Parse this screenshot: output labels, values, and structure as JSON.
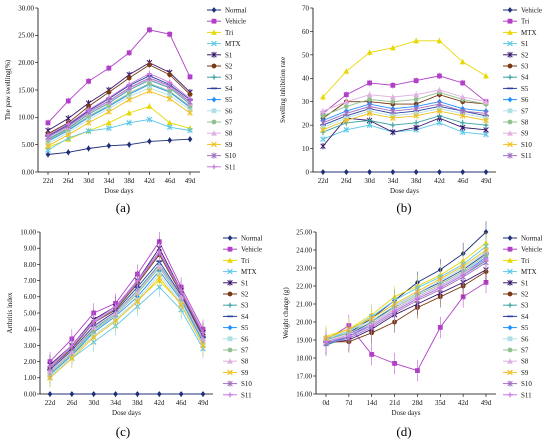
{
  "chart_data": [
    {
      "panel": "(a)",
      "type": "line",
      "ylabel": "The paw swelling(%)",
      "xlabel": "Dose days",
      "x": [
        "22d",
        "26d",
        "30d",
        "34d",
        "38d",
        "42d",
        "46d",
        "49d"
      ],
      "ylim": [
        0,
        30
      ],
      "yticks": [
        "0.00",
        "5.00",
        "10.00",
        "15.00",
        "20.00",
        "25.00",
        "30.00"
      ],
      "series": [
        {
          "name": "Normal",
          "color": "#1f2f7a",
          "values": [
            3.2,
            3.6,
            4.3,
            4.8,
            5.0,
            5.6,
            5.8,
            6.0
          ]
        },
        {
          "name": "Vehicle",
          "color": "#b23fc7",
          "values": [
            9.0,
            13.0,
            16.6,
            19.0,
            21.8,
            26.0,
            25.2,
            17.4
          ]
        },
        {
          "name": "Tri",
          "color": "#e8d800",
          "values": [
            4.5,
            6.0,
            7.5,
            9.0,
            10.8,
            12.0,
            9.0,
            8.0
          ]
        },
        {
          "name": "MTX",
          "color": "#5bc8e8",
          "values": [
            4.0,
            6.2,
            7.5,
            8.0,
            9.0,
            9.6,
            8.2,
            7.6
          ]
        },
        {
          "name": "S1",
          "color": "#3a1a6e",
          "values": [
            7.6,
            9.8,
            12.6,
            15.0,
            17.8,
            20.0,
            18.2,
            14.6
          ]
        },
        {
          "name": "S2",
          "color": "#7a3a12",
          "values": [
            7.0,
            9.0,
            12.0,
            14.6,
            17.2,
            19.6,
            17.8,
            14.2
          ]
        },
        {
          "name": "S3",
          "color": "#3aa0a0",
          "values": [
            6.0,
            8.0,
            10.6,
            12.6,
            15.0,
            16.8,
            15.4,
            12.4
          ]
        },
        {
          "name": "S4",
          "color": "#2a3f9e",
          "values": [
            6.6,
            8.6,
            11.2,
            13.4,
            15.8,
            17.6,
            16.0,
            13.2
          ]
        },
        {
          "name": "S5",
          "color": "#1e90ff",
          "values": [
            5.6,
            7.6,
            10.0,
            12.0,
            14.2,
            16.0,
            14.6,
            11.8
          ]
        },
        {
          "name": "S6",
          "color": "#b0e0e6",
          "values": [
            5.2,
            7.2,
            9.6,
            11.6,
            13.8,
            15.4,
            14.0,
            11.4
          ]
        },
        {
          "name": "S7",
          "color": "#90c090",
          "values": [
            5.8,
            7.8,
            10.2,
            12.2,
            14.4,
            16.2,
            14.8,
            12.0
          ]
        },
        {
          "name": "S8",
          "color": "#e0b0e0",
          "values": [
            6.2,
            8.2,
            10.8,
            12.8,
            15.2,
            17.0,
            15.6,
            12.6
          ]
        },
        {
          "name": "S9",
          "color": "#f0c020",
          "values": [
            4.8,
            6.8,
            9.0,
            11.0,
            13.2,
            14.8,
            13.4,
            10.8
          ]
        },
        {
          "name": "S10",
          "color": "#a070c0",
          "values": [
            6.4,
            8.4,
            11.0,
            13.0,
            15.4,
            17.2,
            15.8,
            12.8
          ]
        },
        {
          "name": "S11",
          "color": "#c878e0",
          "values": [
            6.8,
            8.8,
            11.4,
            13.6,
            16.0,
            18.0,
            16.4,
            13.4
          ]
        }
      ]
    },
    {
      "panel": "(b)",
      "type": "line",
      "ylabel": "Swelling inhibition rate",
      "xlabel": "Dose days",
      "x": [
        "22d",
        "26d",
        "30d",
        "34d",
        "38d",
        "42d",
        "46d",
        "49d"
      ],
      "ylim": [
        0,
        70
      ],
      "yticks": [
        "0",
        "10",
        "20",
        "30",
        "40",
        "50",
        "60",
        "70"
      ],
      "series": [
        {
          "name": "Vehicle",
          "color": "#1f2f7a",
          "values": [
            0,
            0,
            0,
            0,
            0,
            0,
            0,
            0
          ]
        },
        {
          "name": "Tri",
          "color": "#b23fc7",
          "values": [
            25,
            33,
            38,
            37,
            39,
            41,
            38,
            30
          ]
        },
        {
          "name": "MTX",
          "color": "#e8d800",
          "values": [
            32,
            43,
            51,
            53,
            56,
            56,
            47,
            41
          ]
        },
        {
          "name": "S1",
          "color": "#5bc8e8",
          "values": [
            14,
            18,
            20,
            17,
            18,
            21,
            17,
            16
          ]
        },
        {
          "name": "S2",
          "color": "#3a1a6e",
          "values": [
            11,
            23,
            22,
            17,
            19,
            23,
            19,
            18
          ]
        },
        {
          "name": "S3",
          "color": "#7a3a12",
          "values": [
            23,
            30,
            30,
            29,
            29,
            33,
            30,
            29
          ]
        },
        {
          "name": "S4",
          "color": "#3aa0a0",
          "values": [
            17,
            21,
            22,
            20,
            21,
            24,
            21,
            20
          ]
        },
        {
          "name": "S5",
          "color": "#2a3f9e",
          "values": [
            20,
            24,
            27,
            25,
            26,
            28,
            26,
            24
          ]
        },
        {
          "name": "S6",
          "color": "#1e90ff",
          "values": [
            22,
            26,
            29,
            27,
            28,
            30,
            27,
            26
          ]
        },
        {
          "name": "S7",
          "color": "#b0e0e6",
          "values": [
            19,
            23,
            26,
            24,
            25,
            27,
            25,
            23
          ]
        },
        {
          "name": "S8",
          "color": "#90c090",
          "values": [
            24,
            28,
            31,
            30,
            31,
            34,
            31,
            29
          ]
        },
        {
          "name": "S9",
          "color": "#e0b0e0",
          "values": [
            26,
            30,
            33,
            32,
            33,
            35,
            32,
            30
          ]
        },
        {
          "name": "S10",
          "color": "#f0c020",
          "values": [
            18,
            22,
            25,
            23,
            24,
            26,
            24,
            22
          ]
        },
        {
          "name": "S11",
          "color": "#a070c0",
          "values": [
            21,
            25,
            28,
            26,
            27,
            29,
            26,
            25
          ]
        }
      ]
    },
    {
      "panel": "(c)",
      "type": "line",
      "ylabel": "Arthritis index",
      "xlabel": "Dose days",
      "x": [
        "22d",
        "26d",
        "30d",
        "34d",
        "38d",
        "42d",
        "46d",
        "49d"
      ],
      "ylim": [
        0,
        10
      ],
      "yticks": [
        "0.00",
        "1.00",
        "2.00",
        "3.00",
        "4.00",
        "5.00",
        "6.00",
        "7.00",
        "8.00",
        "9.00",
        "10.00"
      ],
      "series": [
        {
          "name": "Normal",
          "color": "#1f2f7a",
          "values": [
            0,
            0,
            0,
            0,
            0,
            0,
            0,
            0
          ]
        },
        {
          "name": "Vehicle",
          "color": "#b23fc7",
          "values": [
            2.0,
            3.4,
            5.0,
            5.6,
            7.4,
            9.4,
            6.6,
            4.0
          ]
        },
        {
          "name": "Tri",
          "color": "#e8d800",
          "values": [
            1.2,
            2.4,
            3.6,
            4.6,
            5.8,
            7.0,
            5.6,
            3.0
          ]
        },
        {
          "name": "MTX",
          "color": "#5bc8e8",
          "values": [
            1.0,
            2.2,
            3.2,
            4.2,
            5.4,
            6.6,
            5.2,
            2.8
          ]
        },
        {
          "name": "S1",
          "color": "#3a1a6e",
          "values": [
            1.8,
            3.0,
            4.6,
            5.4,
            7.0,
            9.0,
            6.4,
            3.8
          ]
        },
        {
          "name": "S2",
          "color": "#7a3a12",
          "values": [
            1.6,
            2.8,
            4.4,
            5.2,
            6.8,
            8.6,
            6.2,
            3.6
          ]
        },
        {
          "name": "S3",
          "color": "#3aa0a0",
          "values": [
            1.4,
            2.6,
            4.0,
            5.0,
            6.4,
            8.0,
            6.0,
            3.4
          ]
        },
        {
          "name": "S4",
          "color": "#2a3f9e",
          "values": [
            1.5,
            2.7,
            4.2,
            5.1,
            6.6,
            8.2,
            6.1,
            3.5
          ]
        },
        {
          "name": "S5",
          "color": "#1e90ff",
          "values": [
            1.2,
            2.4,
            3.8,
            4.8,
            6.0,
            7.6,
            5.8,
            3.2
          ]
        },
        {
          "name": "S6",
          "color": "#b0e0e6",
          "values": [
            1.1,
            2.3,
            3.6,
            4.6,
            5.8,
            7.4,
            5.6,
            3.1
          ]
        },
        {
          "name": "S7",
          "color": "#90c090",
          "values": [
            1.3,
            2.5,
            3.9,
            4.9,
            6.2,
            7.8,
            5.9,
            3.3
          ]
        },
        {
          "name": "S8",
          "color": "#e0b0e0",
          "values": [
            1.4,
            2.6,
            4.1,
            5.0,
            6.3,
            7.9,
            6.0,
            3.4
          ]
        },
        {
          "name": "S9",
          "color": "#f0c020",
          "values": [
            1.0,
            2.2,
            3.5,
            4.5,
            5.7,
            7.2,
            5.5,
            3.0
          ]
        },
        {
          "name": "S10",
          "color": "#a070c0",
          "values": [
            1.6,
            2.9,
            4.4,
            5.3,
            6.9,
            8.7,
            6.3,
            3.7
          ]
        },
        {
          "name": "S11",
          "color": "#c878e0",
          "values": [
            1.7,
            3.0,
            4.5,
            5.4,
            7.0,
            8.8,
            6.4,
            3.8
          ]
        }
      ]
    },
    {
      "panel": "(d)",
      "type": "line",
      "ylabel": "Weight change (g)",
      "xlabel": "Dose days",
      "x": [
        "0d",
        "7d",
        "14d",
        "21d",
        "28d",
        "35d",
        "42d",
        "49d"
      ],
      "ylim": [
        16,
        25
      ],
      "yticks": [
        "16.00",
        "17.00",
        "18.00",
        "19.00",
        "20.00",
        "21.00",
        "22.00",
        "23.00",
        "24.00",
        "25.00"
      ],
      "series": [
        {
          "name": "Normal",
          "color": "#1f2f7a",
          "values": [
            19.0,
            19.4,
            20.2,
            21.2,
            22.2,
            22.9,
            23.8,
            25.0
          ]
        },
        {
          "name": "Vehicle",
          "color": "#b23fc7",
          "values": [
            19.0,
            19.8,
            18.2,
            17.7,
            17.3,
            19.7,
            21.4,
            22.2
          ]
        },
        {
          "name": "Tri",
          "color": "#e8d800",
          "values": [
            19.2,
            19.6,
            20.4,
            21.4,
            22.0,
            22.6,
            23.4,
            24.4
          ]
        },
        {
          "name": "MTX",
          "color": "#5bc8e8",
          "values": [
            19.0,
            19.5,
            20.3,
            21.2,
            21.9,
            22.5,
            23.2,
            24.2
          ]
        },
        {
          "name": "S1",
          "color": "#3a1a6e",
          "values": [
            18.8,
            19.0,
            19.6,
            20.4,
            21.0,
            21.6,
            22.2,
            22.9
          ]
        },
        {
          "name": "S2",
          "color": "#7a3a12",
          "values": [
            18.9,
            18.9,
            19.4,
            20.0,
            20.8,
            21.4,
            22.0,
            22.8
          ]
        },
        {
          "name": "S3",
          "color": "#3aa0a0",
          "values": [
            18.7,
            19.2,
            19.8,
            20.6,
            21.3,
            21.9,
            22.6,
            23.4
          ]
        },
        {
          "name": "S4",
          "color": "#2a3f9e",
          "values": [
            18.9,
            19.3,
            20.0,
            20.9,
            21.6,
            22.2,
            22.9,
            23.8
          ]
        },
        {
          "name": "S5",
          "color": "#1e90ff",
          "values": [
            18.8,
            19.2,
            19.9,
            20.7,
            21.4,
            22.0,
            22.7,
            23.6
          ]
        },
        {
          "name": "S6",
          "color": "#b0e0e6",
          "values": [
            19.1,
            19.5,
            20.1,
            20.9,
            21.6,
            22.3,
            23.0,
            23.9
          ]
        },
        {
          "name": "S7",
          "color": "#90c090",
          "values": [
            19.0,
            19.4,
            20.0,
            20.8,
            21.5,
            22.1,
            22.8,
            23.7
          ]
        },
        {
          "name": "S8",
          "color": "#e0b0e0",
          "values": [
            18.9,
            19.3,
            19.9,
            20.7,
            21.4,
            22.0,
            22.7,
            23.5
          ]
        },
        {
          "name": "S9",
          "color": "#f0c020",
          "values": [
            19.1,
            19.6,
            20.2,
            21.0,
            21.7,
            22.4,
            23.1,
            24.0
          ]
        },
        {
          "name": "S10",
          "color": "#a070c0",
          "values": [
            18.8,
            19.1,
            19.7,
            20.5,
            21.2,
            21.8,
            22.5,
            23.3
          ]
        },
        {
          "name": "S11",
          "color": "#c878e0",
          "values": [
            18.9,
            19.2,
            19.8,
            20.6,
            21.3,
            21.9,
            22.6,
            23.5
          ]
        }
      ]
    }
  ]
}
